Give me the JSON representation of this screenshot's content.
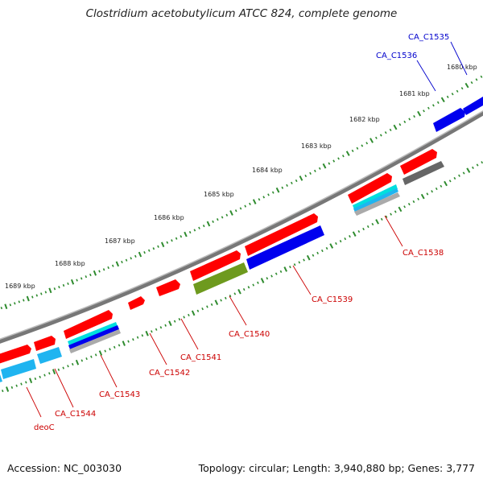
{
  "title": "Clostridium acetobutylicum ATCC 824, complete genome",
  "footer": {
    "accession": "Accession: NC_003030",
    "summary": "Topology: circular; Length: 3,940,880 bp; Genes: 3,777"
  },
  "ruler": {
    "labels": [
      "1680 kbp",
      "1681 kbp",
      "1682 kbp",
      "1683 kbp",
      "1684 kbp",
      "1685 kbp",
      "1686 kbp",
      "1687 kbp",
      "1688 kbp",
      "1689 kbp"
    ]
  },
  "genes": [
    {
      "name": "CA_C1535",
      "color": "#0000cc"
    },
    {
      "name": "CA_C1536",
      "color": "#0000cc"
    },
    {
      "name": "CA_C1538",
      "color": "#cc0000"
    },
    {
      "name": "CA_C1539",
      "color": "#cc0000"
    },
    {
      "name": "CA_C1540",
      "color": "#cc0000"
    },
    {
      "name": "CA_C1541",
      "color": "#cc0000"
    },
    {
      "name": "CA_C1542",
      "color": "#cc0000"
    },
    {
      "name": "CA_C1543",
      "color": "#cc0000"
    },
    {
      "name": "CA_C1544",
      "color": "#cc0000"
    },
    {
      "name": "deoC",
      "color": "#cc0000"
    }
  ],
  "colors": {
    "cds_forward": "#ff0000",
    "cds_reverse": "#0000ee",
    "light_blue": "#1fb4f0",
    "cyan": "#00dede",
    "olive": "#6e9a1e",
    "gray": "#666666",
    "backbone": "#777777",
    "tick": "#2e8b2e"
  }
}
